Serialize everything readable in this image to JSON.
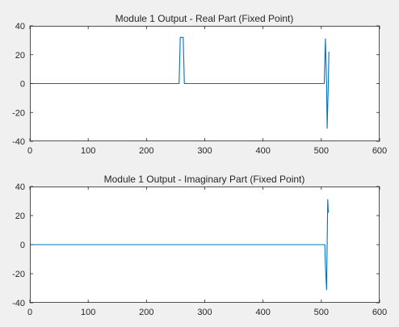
{
  "chart_data": [
    {
      "type": "line",
      "title": "Module 1 Output - Real Part (Fixed Point)",
      "xlabel": "",
      "ylabel": "",
      "xlim": [
        0,
        600
      ],
      "ylim": [
        -40,
        40
      ],
      "xticks": [
        0,
        100,
        200,
        300,
        400,
        500,
        600
      ],
      "yticks": [
        -40,
        -20,
        0,
        20,
        40
      ],
      "grid": false,
      "line_color": "#0072bd",
      "series": [
        {
          "x": [
            0,
            256,
            257,
            258,
            263,
            264,
            265,
            505,
            506,
            507,
            509,
            510,
            512,
            513
          ],
          "y": [
            0,
            0,
            16,
            32,
            32,
            16,
            0,
            0,
            16,
            31,
            0,
            -31,
            0,
            22
          ]
        }
      ]
    },
    {
      "type": "line",
      "title": "Module 1 Output - Imaginary Part (Fixed Point)",
      "xlabel": "",
      "ylabel": "",
      "xlim": [
        0,
        600
      ],
      "ylim": [
        -40,
        40
      ],
      "xticks": [
        0,
        100,
        200,
        300,
        400,
        500,
        600
      ],
      "yticks": [
        -40,
        -20,
        0,
        20,
        40
      ],
      "grid": false,
      "line_color": "#0072bd",
      "series": [
        {
          "x": [
            0,
            506,
            507,
            509,
            510,
            511,
            512
          ],
          "y": [
            0,
            0,
            -14,
            -31,
            0,
            31,
            22
          ]
        }
      ]
    }
  ]
}
